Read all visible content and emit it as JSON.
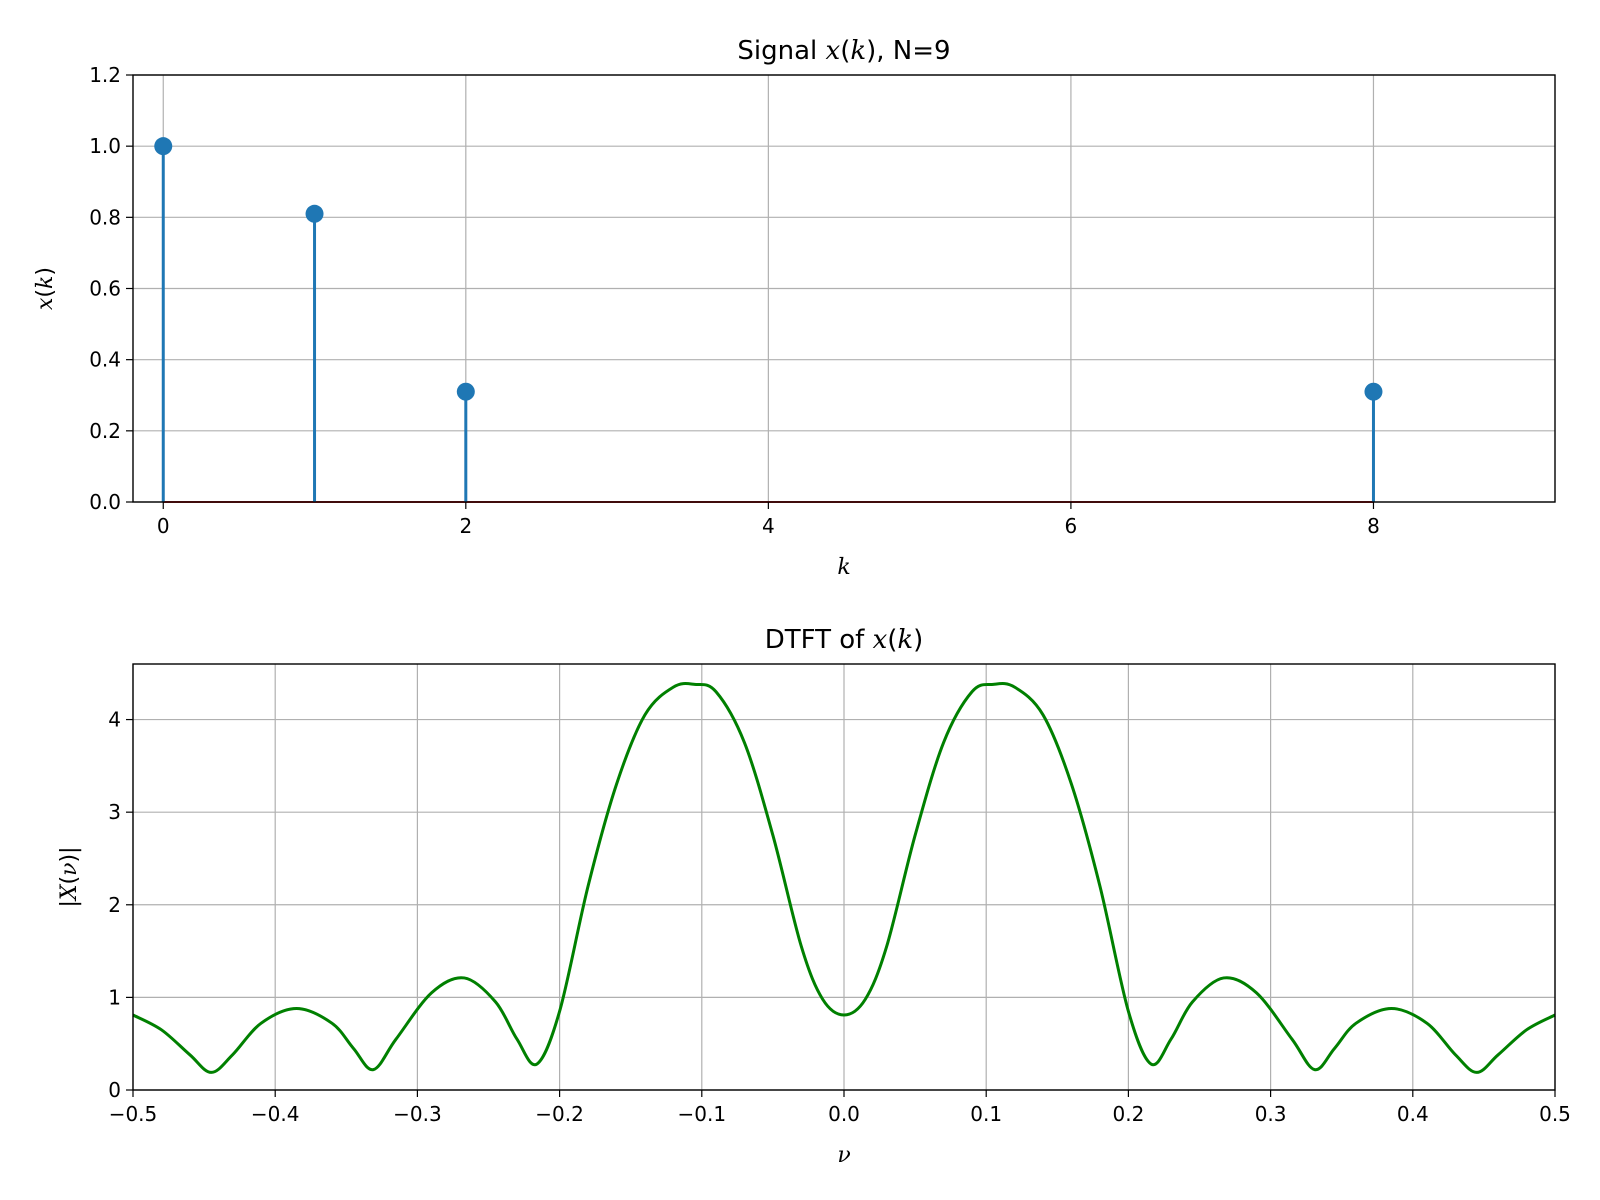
{
  "chart_data": [
    {
      "type": "stem",
      "title": {
        "pre": "Signal ",
        "var": "x",
        "open": "(",
        "arg": "k",
        "close": ")",
        "post": ", N=9"
      },
      "xlabel": "k",
      "ylabel": {
        "var": "x",
        "open": "(",
        "arg": "k",
        "close": ")"
      },
      "xlim": [
        -0.2,
        9.2
      ],
      "ylim": [
        0.0,
        1.2
      ],
      "xticks": [
        0,
        2,
        4,
        6,
        8
      ],
      "xtick_labels": [
        "0",
        "2",
        "4",
        "6",
        "8"
      ],
      "yticks": [
        0.0,
        0.2,
        0.4,
        0.6,
        0.8,
        1.0,
        1.2
      ],
      "ytick_labels": [
        "0.0",
        "0.2",
        "0.4",
        "0.6",
        "0.8",
        "1.0",
        "1.2"
      ],
      "grid": true,
      "x": [
        0,
        1,
        2,
        3,
        4,
        5,
        6,
        7,
        8
      ],
      "y": [
        1.0,
        0.81,
        0.31,
        0.0,
        0.0,
        0.0,
        0.0,
        0.0,
        0.31
      ],
      "stem_color": "#1f77b4",
      "baseline_color": "#d62728"
    },
    {
      "type": "line",
      "title": {
        "pre": "DTFT of ",
        "var": "x",
        "open": "(",
        "arg": "k",
        "close": ")",
        "post": ""
      },
      "xlabel": "ν",
      "ylabel": {
        "pre": "|",
        "var": "X",
        "open": "(",
        "arg": "ν",
        "close": ")",
        "post": "|"
      },
      "xlim": [
        -0.5,
        0.5
      ],
      "ylim": [
        0,
        4.6
      ],
      "xticks": [
        -0.5,
        -0.4,
        -0.3,
        -0.2,
        -0.1,
        0.0,
        0.1,
        0.2,
        0.3,
        0.4,
        0.5
      ],
      "xtick_labels": [
        "−0.5",
        "−0.4",
        "−0.3",
        "−0.2",
        "−0.1",
        "0.0",
        "0.1",
        "0.2",
        "0.3",
        "0.4",
        "0.5"
      ],
      "yticks": [
        0,
        1,
        2,
        3,
        4
      ],
      "ytick_labels": [
        "0",
        "1",
        "2",
        "3",
        "4"
      ],
      "grid": true,
      "x": [
        -0.5,
        -0.48,
        -0.46,
        -0.445,
        -0.43,
        -0.41,
        -0.385,
        -0.36,
        -0.345,
        -0.331,
        -0.315,
        -0.29,
        -0.267,
        -0.245,
        -0.23,
        -0.216,
        -0.2,
        -0.18,
        -0.16,
        -0.14,
        -0.12,
        -0.105,
        -0.09,
        -0.07,
        -0.05,
        -0.03,
        -0.015,
        0.0,
        0.015,
        0.03,
        0.05,
        0.07,
        0.09,
        0.105,
        0.12,
        0.14,
        0.16,
        0.18,
        0.2,
        0.216,
        0.23,
        0.245,
        0.267,
        0.29,
        0.315,
        0.331,
        0.345,
        0.36,
        0.385,
        0.41,
        0.43,
        0.445,
        0.46,
        0.48,
        0.5
      ],
      "y": [
        0.81,
        0.65,
        0.38,
        0.19,
        0.38,
        0.72,
        0.88,
        0.72,
        0.45,
        0.22,
        0.55,
        1.05,
        1.21,
        0.95,
        0.55,
        0.28,
        0.85,
        2.2,
        3.3,
        4.05,
        4.35,
        4.38,
        4.3,
        3.75,
        2.75,
        1.55,
        0.98,
        0.81,
        0.98,
        1.55,
        2.75,
        3.75,
        4.3,
        4.38,
        4.35,
        4.05,
        3.3,
        2.2,
        0.85,
        0.28,
        0.55,
        0.95,
        1.21,
        1.05,
        0.55,
        0.22,
        0.45,
        0.72,
        0.88,
        0.72,
        0.38,
        0.19,
        0.38,
        0.65,
        0.81
      ],
      "line_color": "#008000"
    }
  ]
}
